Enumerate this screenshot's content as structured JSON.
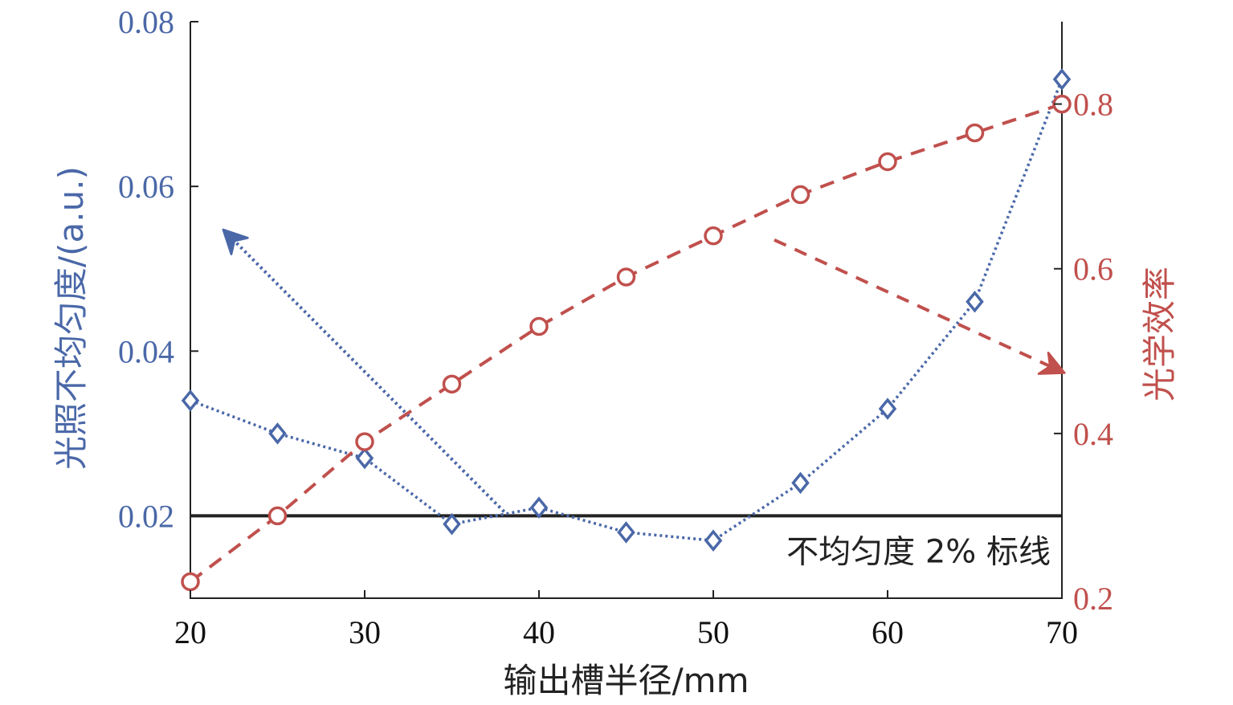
{
  "chart_data": {
    "type": "line",
    "title": "",
    "xlabel": "输出槽半径/mm",
    "ylabel_left": "光照不均匀度/(a.u.)",
    "ylabel_right": "光学效率",
    "x_ticks": [
      "20",
      "30",
      "40",
      "50",
      "60",
      "70"
    ],
    "y_left_ticks": [
      "0.02",
      "0.04",
      "0.06",
      "0.08"
    ],
    "y_right_ticks": [
      "0.2",
      "0.4",
      "0.6",
      "0.8"
    ],
    "xlim": [
      20,
      70
    ],
    "ylim_left": [
      0.01,
      0.08
    ],
    "ylim_right": [
      0.2,
      0.9
    ],
    "x": [
      20,
      25,
      30,
      35,
      40,
      45,
      50,
      55,
      60,
      65,
      70
    ],
    "series": [
      {
        "axis": "left",
        "marker": "diamond",
        "line": "dotted",
        "color": "#4a68a8",
        "values": [
          0.034,
          0.03,
          0.027,
          0.019,
          0.021,
          0.018,
          0.017,
          0.024,
          0.033,
          0.046,
          0.073
        ]
      },
      {
        "axis": "right",
        "marker": "circle",
        "line": "dashed",
        "color": "#c0504d",
        "values": [
          0.22,
          0.3,
          0.39,
          0.46,
          0.53,
          0.59,
          0.64,
          0.69,
          0.73,
          0.765,
          0.8
        ]
      }
    ],
    "reference_line": {
      "y": 0.02,
      "axis": "left",
      "label": "不均匀度 2% 标线",
      "color": "#222222"
    },
    "arrows": [
      {
        "from_x": 38,
        "from_y_left": 0.0205,
        "to_x": 22,
        "to_y_left": 0.0545,
        "color": "#4a68a8",
        "style": "dotted"
      },
      {
        "from_x": 53.5,
        "from_y_left": 0.0535,
        "to_x": 70,
        "to_y_left": 0.0375,
        "color": "#c0504d",
        "style": "dashed"
      }
    ],
    "grid": false,
    "legend": "none"
  }
}
